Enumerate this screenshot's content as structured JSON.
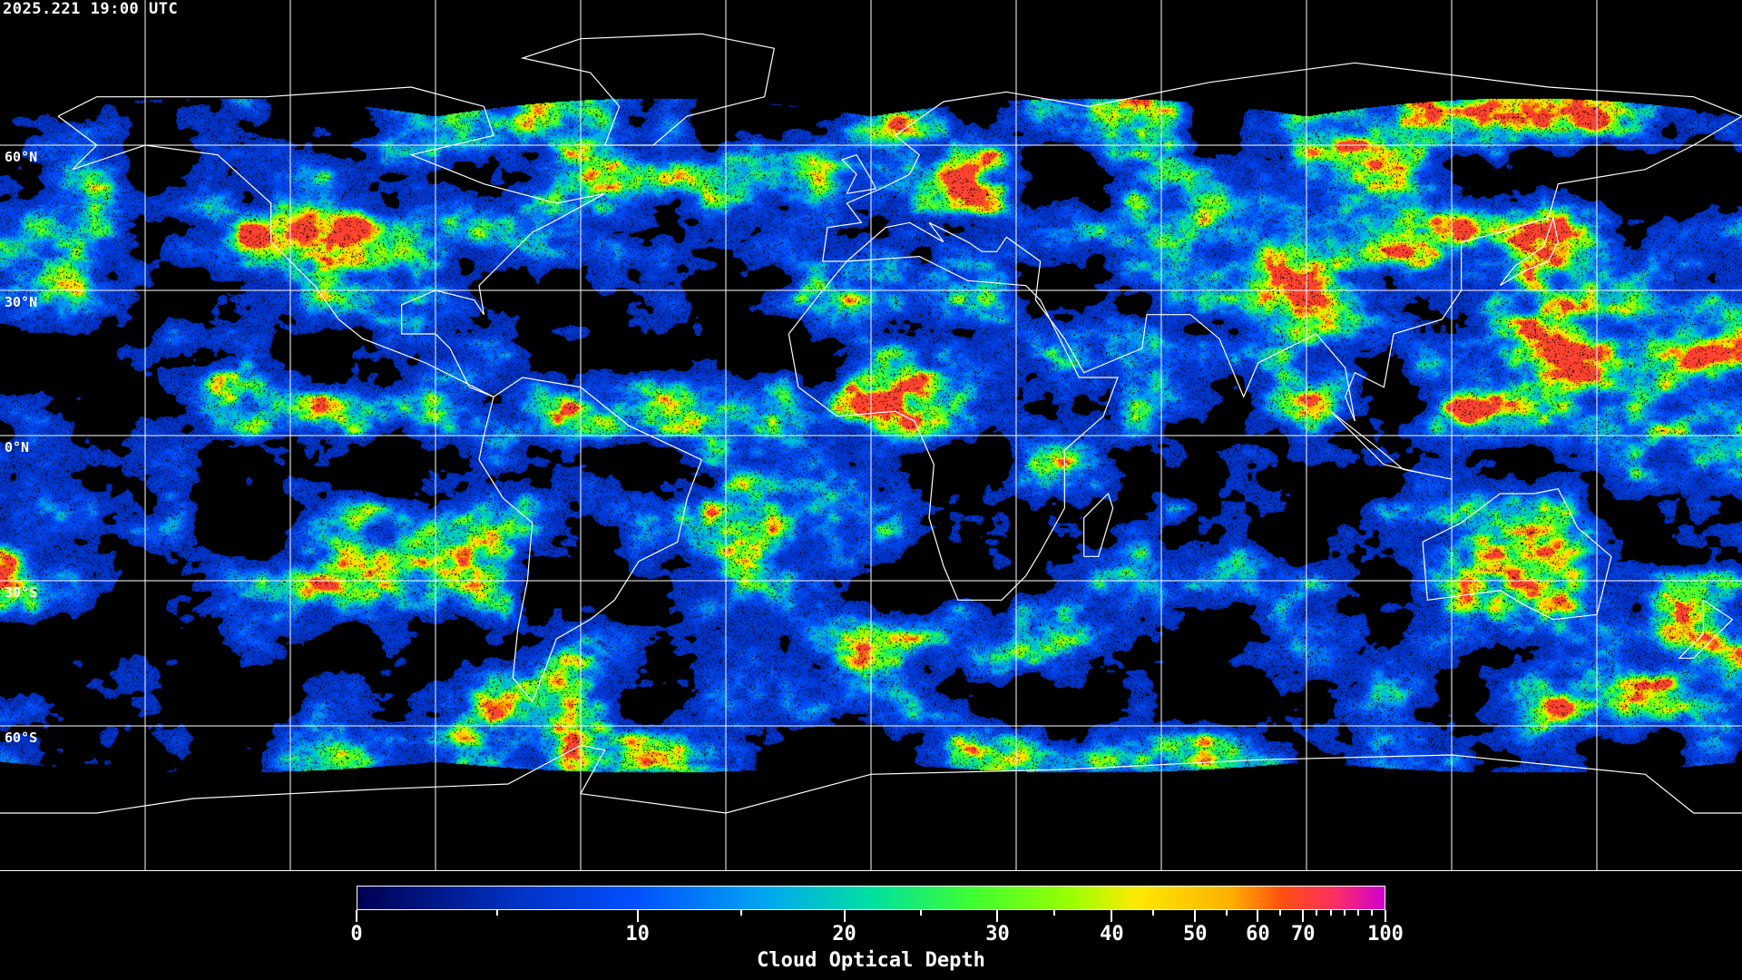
{
  "timestamp": "2025.221 19:00 UTC",
  "map": {
    "projection": "equirectangular",
    "lat_labels": [
      "60°N",
      "30°N",
      "0°N",
      "30°S",
      "60°S"
    ],
    "grid_interval_degrees": 30,
    "background": "#000000",
    "coastline_color": "#ffffff"
  },
  "colorbar": {
    "title": "Cloud Optical Depth",
    "min": 0,
    "max": 100,
    "major_ticks": [
      "0",
      "10",
      "20",
      "30",
      "40",
      "50",
      "60",
      "70",
      "100"
    ],
    "minor_ticks": [
      5,
      15,
      25,
      35,
      45,
      55,
      65,
      75,
      80,
      85,
      90,
      95
    ],
    "colors": [
      "#000050",
      "#0030c0",
      "#0050ff",
      "#00a8f0",
      "#00e0a0",
      "#40ff30",
      "#a0ff00",
      "#ffe800",
      "#ffb000",
      "#ff5010",
      "#ff3060",
      "#d000d0"
    ]
  }
}
